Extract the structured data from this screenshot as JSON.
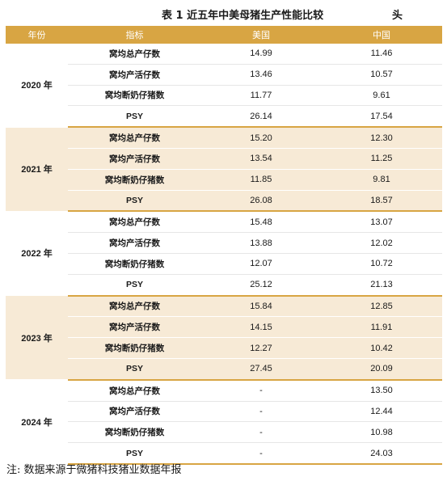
{
  "title": "表 1  近五年中美母猪生产性能比较",
  "title_suffix": "头",
  "headers": [
    "年份",
    "指标",
    "美国",
    "中国"
  ],
  "metrics": [
    "窝均总产仔数",
    "窝均产活仔数",
    "窝均断奶仔猪数",
    "PSY"
  ],
  "groups": [
    {
      "year": "2020 年",
      "us": [
        "14.99",
        "13.46",
        "11.77",
        "26.14"
      ],
      "cn": [
        "11.46",
        "10.57",
        "9.61",
        "17.54"
      ]
    },
    {
      "year": "2021 年",
      "us": [
        "15.20",
        "13.54",
        "11.85",
        "26.08"
      ],
      "cn": [
        "12.30",
        "11.25",
        "9.81",
        "18.57"
      ]
    },
    {
      "year": "2022 年",
      "us": [
        "15.48",
        "13.88",
        "12.07",
        "25.12"
      ],
      "cn": [
        "13.07",
        "12.02",
        "10.72",
        "21.13"
      ]
    },
    {
      "year": "2023 年",
      "us": [
        "15.84",
        "14.15",
        "12.27",
        "27.45"
      ],
      "cn": [
        "12.85",
        "11.91",
        "10.42",
        "20.09"
      ]
    },
    {
      "year": "2024 年",
      "us": [
        "-",
        "-",
        "-",
        "-"
      ],
      "cn": [
        "13.50",
        "12.44",
        "10.98",
        "24.03"
      ]
    }
  ],
  "footnote": "注: 数据来源于微猪科技猪业数据年报",
  "colors": {
    "header_bg": "#d8a543",
    "alt_row_bg": "#f7ead6"
  }
}
